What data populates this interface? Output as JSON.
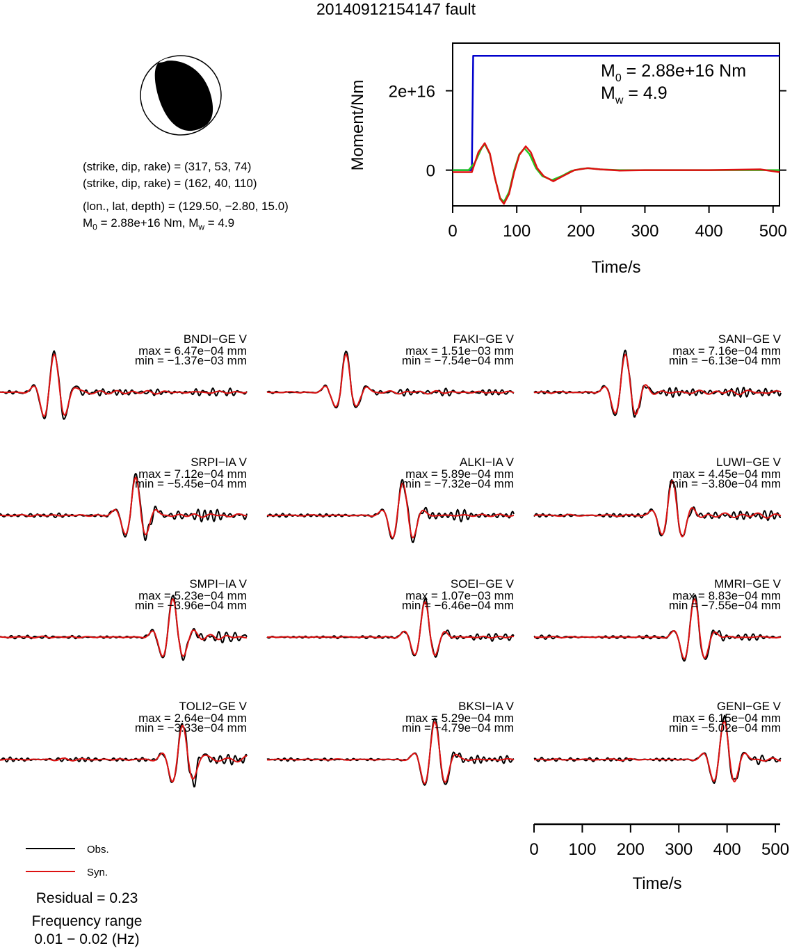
{
  "title": "20140912154147 fault",
  "mechanism": {
    "plane1": "(strike, dip, rake) = (317, 53, 74)",
    "plane2": "(strike, dip, rake) = (162, 40, 110)",
    "location": "(lon., lat, depth) = (129.50, −2.80, 15.0)",
    "moment_prefix": "M",
    "moment_sub": "0",
    "moment_rest": " = 2.88e+16 Nm, M",
    "mw_sub": "w",
    "mw_rest": " = 4.9"
  },
  "moment_plot": {
    "ylabel": "Moment/Nm",
    "xlabel": "Time/s",
    "m0_label": "M",
    "m0_sub": "0",
    "m0_value": " = 2.88e+16 Nm",
    "mw_label": "M",
    "mw_sub": "w",
    "mw_value": " = 4.9"
  },
  "chart_data": [
    {
      "type": "line",
      "xlabel": "Time/s",
      "ylabel": "Moment/Nm",
      "xlim": [
        0,
        510
      ],
      "ylim": [
        -9000000000000000.0,
        3.2e+16
      ],
      "xticks": [
        0,
        100,
        200,
        300,
        400,
        500
      ],
      "yticks": [
        {
          "value": 0,
          "label": "0"
        },
        {
          "value": 2e+16,
          "label": "2e+16"
        }
      ],
      "series": [
        {
          "color": "#0000cc",
          "x": [
            0,
            30,
            32,
            510
          ],
          "y": [
            0,
            0,
            2.88e+16,
            2.88e+16
          ]
        },
        {
          "color": "#22cc22",
          "x": [
            0,
            25,
            35,
            45,
            50,
            58,
            66,
            74,
            80,
            88,
            96,
            104,
            112,
            120,
            130,
            140,
            155,
            170,
            185,
            200,
            212,
            230,
            260,
            300,
            400,
            510
          ],
          "y": [
            0,
            0,
            2000000000000000.0,
            5500000000000000.0,
            6600000000000000.0,
            4000000000000000.0,
            -2000000000000000.0,
            -7000000000000000.0,
            -8000000000000000.0,
            -5500000000000000.0,
            0.0,
            4000000000000000.0,
            5500000000000000.0,
            4000000000000000.0,
            500000000000000.0,
            -1500000000000000.0,
            -2500000000000000.0,
            -1500000000000000.0,
            -200000000000000.0,
            300000000000000.0,
            500000000000000.0,
            200000000000000.0,
            0.0,
            0.0,
            0.0,
            0.0
          ]
        },
        {
          "color": "#dd1111",
          "x": [
            0,
            20,
            30,
            40,
            50,
            58,
            66,
            74,
            80,
            88,
            96,
            104,
            114,
            122,
            132,
            142,
            157,
            172,
            190,
            210,
            230,
            260,
            300,
            400,
            480,
            510
          ],
          "y": [
            -500000000000000.0,
            -500000000000000.0,
            -500000000000000.0,
            4500000000000000.0,
            6800000000000000.0,
            4200000000000000.0,
            -2000000000000000.0,
            -7200000000000000.0,
            -8500000000000000.0,
            -6000000000000000.0,
            -500000000000000.0,
            3800000000000000.0,
            6000000000000000.0,
            4500000000000000.0,
            500000000000000.0,
            -1500000000000000.0,
            -2800000000000000.0,
            -1500000000000000.0,
            0.0,
            500000000000000.0,
            200000000000000.0,
            -100000000000000.0,
            0.0,
            0.0,
            200000000000000.0,
            -500000000000000.0
          ]
        }
      ]
    },
    {
      "type": "line",
      "xlabel": "Time/s",
      "xlim": [
        0,
        510
      ],
      "xticks": [
        0,
        100,
        200,
        300,
        400,
        500
      ],
      "series": [
        {
          "name": "Obs.",
          "color": "#000000"
        },
        {
          "name": "Syn.",
          "color": "#dd1111"
        }
      ],
      "stations": [
        {
          "label": "BNDI−GE V",
          "max": "max = 6.47e−04 mm",
          "min": "min = −1.37e−03 mm",
          "center": 0.22,
          "scale": 1.0,
          "noise": 0.12,
          "neg": 1.0,
          "seed": 1
        },
        {
          "label": "FAKI−GE V",
          "max": "max = 1.51e−03 mm",
          "min": "min = −7.54e−04 mm",
          "center": 0.32,
          "scale": 1.0,
          "noise": 0.1,
          "neg": 0.6,
          "seed": 2
        },
        {
          "label": "SANI−GE V",
          "max": "max = 7.16e−04 mm",
          "min": "min = −6.13e−04 mm",
          "center": 0.37,
          "scale": 1.0,
          "noise": 0.18,
          "neg": 0.9,
          "seed": 3
        },
        {
          "label": "SRPI−IA V",
          "max": "max = 7.12e−04 mm",
          "min": "min = −5.45e−04 mm",
          "center": 0.55,
          "scale": 1.0,
          "noise": 0.2,
          "neg": 0.8,
          "seed": 4
        },
        {
          "label": "ALKI−IA V",
          "max": "max = 5.89e−04 mm",
          "min": "min = −7.32e−04 mm",
          "center": 0.55,
          "scale": 0.85,
          "noise": 0.12,
          "neg": 1.1,
          "seed": 5
        },
        {
          "label": "LUWI−GE V",
          "max": "max = 4.45e−04 mm",
          "min": "min = −3.80e−04 mm",
          "center": 0.56,
          "scale": 0.9,
          "noise": 0.22,
          "neg": 0.9,
          "seed": 6
        },
        {
          "label": "SMPI−IA V",
          "max": "max = 5.23e−04 mm",
          "min": "min = −3.96e−04 mm",
          "center": 0.7,
          "scale": 1.0,
          "noise": 0.18,
          "neg": 0.8,
          "seed": 7
        },
        {
          "label": "SOEI−GE V",
          "max": "max = 1.07e−03 mm",
          "min": "min = −6.46e−04 mm",
          "center": 0.64,
          "scale": 0.9,
          "noise": 0.12,
          "neg": 0.8,
          "seed": 8
        },
        {
          "label": "MMRI−GE V",
          "max": "max = 8.83e−04 mm",
          "min": "min = −7.55e−04 mm",
          "center": 0.65,
          "scale": 1.0,
          "noise": 0.12,
          "neg": 0.9,
          "seed": 9
        },
        {
          "label": "TOLI2−GE V",
          "max": "max = 2.64e−04 mm",
          "min": "min = −3.33e−04 mm",
          "center": 0.74,
          "scale": 0.9,
          "noise": 0.22,
          "neg": 1.0,
          "seed": 10
        },
        {
          "label": "BKSI−IA V",
          "max": "max = 5.29e−04 mm",
          "min": "min = −4.79e−04 mm",
          "center": 0.68,
          "scale": 1.0,
          "noise": 0.12,
          "neg": 1.0,
          "seed": 11
        },
        {
          "label": "GENI−GE V",
          "max": "max = 6.15e−04 mm",
          "min": "min = −5.02e−04 mm",
          "center": 0.77,
          "scale": 1.0,
          "noise": 0.14,
          "neg": 0.9,
          "seed": 12
        }
      ]
    }
  ],
  "legend": {
    "obs": "Obs.",
    "syn": "Syn."
  },
  "residual": "Residual = 0.23",
  "freq_title": "Frequency range",
  "freq_value": "0.01 − 0.02 (Hz)"
}
